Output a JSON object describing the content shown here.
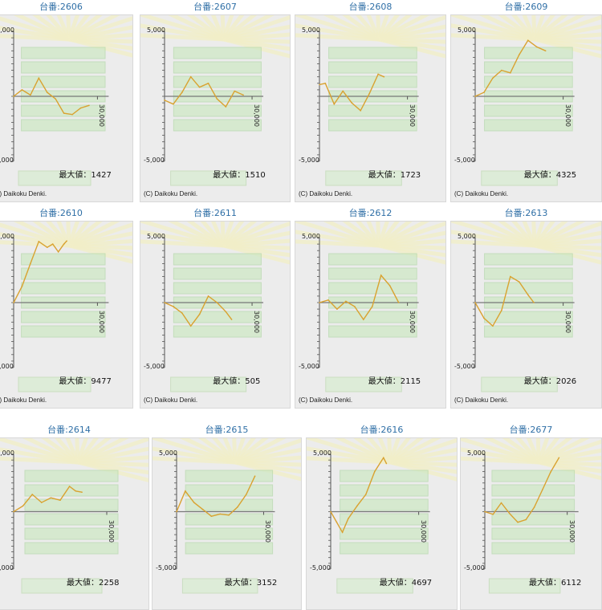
{
  "copyright": "(C) Daikoku Denki.",
  "y_tick_labels": {
    "top": "5,000",
    "bottom": "-5,000"
  },
  "x_tick_label": "30,000",
  "max_prefix": "最大値：",
  "colors": {
    "title": "#2f6fa6",
    "line": "#d9a230",
    "axis": "#555555",
    "panel": "#ececec"
  },
  "chart_data": [
    {
      "type": "line",
      "title": "台番:2606",
      "max_value": 1427,
      "ylim": [
        -5000,
        5000
      ],
      "xlim": [
        0,
        30000
      ],
      "x": [
        0,
        3000,
        6000,
        9000,
        12000,
        15000,
        18000,
        21000,
        24000,
        27000
      ],
      "y": [
        0,
        500,
        100,
        1400,
        300,
        -200,
        -1300,
        -1400,
        -900,
        -700
      ]
    },
    {
      "type": "line",
      "title": "台番:2607",
      "max_value": 1510,
      "ylim": [
        -5000,
        5000
      ],
      "xlim": [
        0,
        30000
      ],
      "x": [
        0,
        3000,
        6000,
        9000,
        12000,
        15000,
        18000,
        21000,
        24000,
        27000
      ],
      "y": [
        -300,
        -600,
        300,
        1500,
        700,
        1000,
        -200,
        -800,
        400,
        100
      ]
    },
    {
      "type": "line",
      "title": "台番:2608",
      "max_value": 1723,
      "ylim": [
        -5000,
        5000
      ],
      "xlim": [
        0,
        30000
      ],
      "x": [
        0,
        2000,
        5000,
        8000,
        11000,
        14000,
        17000,
        20000,
        22000
      ],
      "y": [
        900,
        1000,
        -600,
        400,
        -500,
        -1100,
        200,
        1700,
        1500
      ]
    },
    {
      "type": "line",
      "title": "台番:2609",
      "max_value": 4325,
      "ylim": [
        -5000,
        5000
      ],
      "xlim": [
        0,
        30000
      ],
      "x": [
        0,
        3000,
        6000,
        9000,
        12000,
        15000,
        18000,
        21000,
        24000
      ],
      "y": [
        0,
        300,
        1400,
        2000,
        1800,
        3200,
        4300,
        3800,
        3500
      ]
    },
    {
      "type": "line",
      "title": "台番:2610",
      "max_value": 9477,
      "ylim": [
        -10000,
        10000
      ],
      "xlim": [
        0,
        30000
      ],
      "x": [
        0,
        3000,
        6000,
        9000,
        12000,
        14000,
        16000,
        18000,
        19000
      ],
      "y": [
        0,
        2500,
        6000,
        9400,
        8500,
        9000,
        7800,
        9000,
        9477
      ]
    },
    {
      "type": "line",
      "title": "台番:2611",
      "max_value": 505,
      "ylim": [
        -5000,
        5000
      ],
      "xlim": [
        0,
        30000
      ],
      "x": [
        0,
        3000,
        6000,
        9000,
        12000,
        15000,
        18000,
        21000,
        23000
      ],
      "y": [
        0,
        -300,
        -800,
        -1800,
        -900,
        500,
        0,
        -700,
        -1300
      ]
    },
    {
      "type": "line",
      "title": "台番:2612",
      "max_value": 2115,
      "ylim": [
        -5000,
        5000
      ],
      "xlim": [
        0,
        30000
      ],
      "x": [
        0,
        3000,
        6000,
        9000,
        12000,
        15000,
        18000,
        21000,
        24000,
        27000
      ],
      "y": [
        0,
        200,
        -500,
        100,
        -300,
        -1300,
        -300,
        2100,
        1300,
        0
      ]
    },
    {
      "type": "line",
      "title": "台番:2613",
      "max_value": 2026,
      "ylim": [
        -5000,
        5000
      ],
      "xlim": [
        0,
        30000
      ],
      "x": [
        0,
        3000,
        6000,
        9000,
        12000,
        15000,
        18000,
        20000
      ],
      "y": [
        0,
        -1200,
        -1800,
        -600,
        2000,
        1600,
        600,
        0
      ]
    },
    {
      "type": "line",
      "title": "台番:2614",
      "max_value": 2258,
      "ylim": [
        -5000,
        5000
      ],
      "xlim": [
        0,
        30000
      ],
      "x": [
        0,
        3000,
        6000,
        9000,
        12000,
        15000,
        18000,
        20000,
        22000
      ],
      "y": [
        0,
        500,
        1500,
        800,
        1200,
        1000,
        2200,
        1800,
        1700
      ]
    },
    {
      "type": "line",
      "title": "台番:2615",
      "max_value": 3152,
      "ylim": [
        -5000,
        5000
      ],
      "xlim": [
        0,
        30000
      ],
      "x": [
        0,
        3000,
        6000,
        9000,
        12000,
        15000,
        18000,
        21000,
        24000,
        27000
      ],
      "y": [
        0,
        1800,
        800,
        200,
        -400,
        -200,
        -300,
        400,
        1500,
        3100
      ]
    },
    {
      "type": "line",
      "title": "台番:2616",
      "max_value": 4697,
      "ylim": [
        -5000,
        5000
      ],
      "xlim": [
        0,
        30000
      ],
      "x": [
        0,
        2000,
        4000,
        6000,
        9000,
        12000,
        15000,
        18000,
        19000
      ],
      "y": [
        0,
        -900,
        -1800,
        -600,
        500,
        1500,
        3500,
        4697,
        4200
      ]
    },
    {
      "type": "line",
      "title": "台番:2677",
      "max_value": 6112,
      "ylim": [
        -6500,
        6500
      ],
      "xlim": [
        0,
        30000
      ],
      "x": [
        0,
        3000,
        6000,
        9000,
        12000,
        15000,
        18000,
        21000,
        24000,
        27000
      ],
      "y": [
        0,
        -300,
        1000,
        -200,
        -1200,
        -900,
        500,
        2500,
        4500,
        6112
      ]
    }
  ]
}
